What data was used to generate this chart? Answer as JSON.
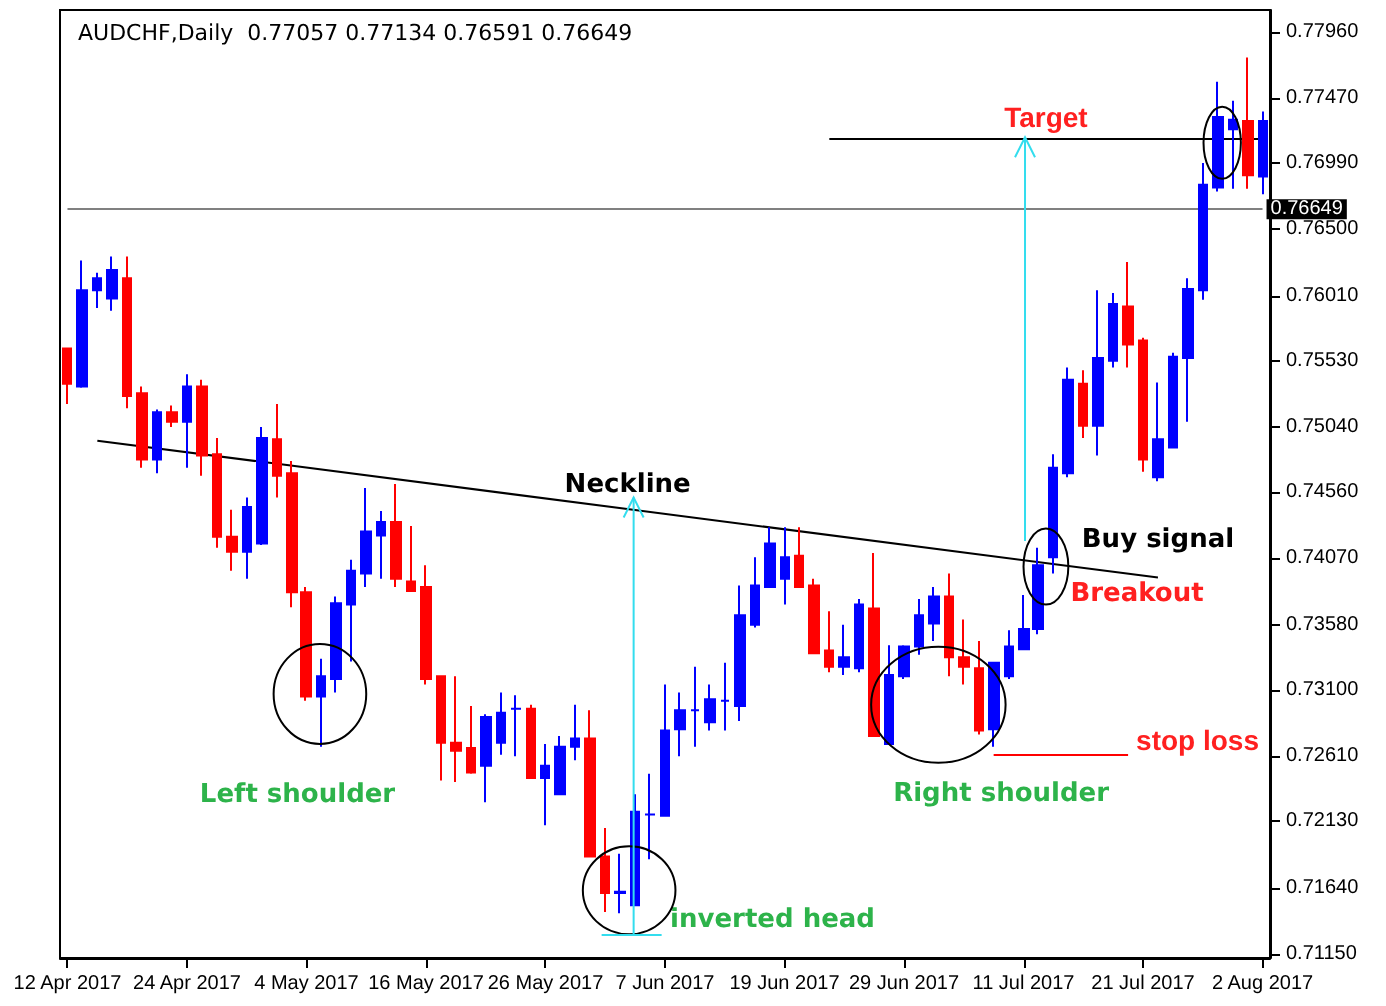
{
  "chart_data": {
    "type": "candlestick",
    "title": "AUDCHF,Daily  0.77057 0.77134 0.76591 0.76649",
    "categories": [
      "12 Apr 2017",
      null,
      null,
      null,
      null,
      null,
      null,
      null,
      "24 Apr 2017",
      null,
      null,
      null,
      null,
      null,
      null,
      null,
      "4 May 2017",
      null,
      null,
      null,
      null,
      null,
      null,
      null,
      "16 May 2017",
      null,
      null,
      null,
      null,
      null,
      null,
      null,
      "26 May 2017",
      null,
      null,
      null,
      null,
      null,
      null,
      null,
      "7 Jun 2017",
      null,
      null,
      null,
      null,
      null,
      null,
      null,
      "19 Jun 2017",
      null,
      null,
      null,
      null,
      null,
      null,
      null,
      "29 Jun 2017",
      null,
      null,
      null,
      null,
      null,
      null,
      null,
      "11 Jul 2017",
      null,
      null,
      null,
      null,
      null,
      null,
      null,
      "21 Jul 2017",
      null,
      null,
      null,
      null,
      null,
      null,
      null,
      "2 Aug 2017"
    ],
    "ohlc": [
      [
        0.7562,
        0.7562,
        0.7521,
        0.7536
      ],
      [
        0.7534,
        0.7627,
        0.7533,
        0.7605
      ],
      [
        0.7605,
        0.7618,
        0.7592,
        0.7614
      ],
      [
        0.7599,
        0.763,
        0.759,
        0.762
      ],
      [
        0.7614,
        0.763,
        0.7518,
        0.7527
      ],
      [
        0.7529,
        0.7534,
        0.7474,
        0.748
      ],
      [
        0.748,
        0.7517,
        0.747,
        0.7515
      ],
      [
        0.7515,
        0.752,
        0.7504,
        0.7508
      ],
      [
        0.7508,
        0.7543,
        0.7474,
        0.7534
      ],
      [
        0.7534,
        0.7539,
        0.7468,
        0.7483
      ],
      [
        0.7484,
        0.7496,
        0.7415,
        0.7423
      ],
      [
        0.7423,
        0.7443,
        0.7398,
        0.7412
      ],
      [
        0.7412,
        0.7452,
        0.7392,
        0.7445
      ],
      [
        0.7418,
        0.7504,
        0.7417,
        0.7496
      ],
      [
        0.7495,
        0.7521,
        0.7452,
        0.7468
      ],
      [
        0.747,
        0.7479,
        0.7371,
        0.7382
      ],
      [
        0.7382,
        0.7386,
        0.7302,
        0.7305
      ],
      [
        0.7305,
        0.7333,
        0.7268,
        0.732
      ],
      [
        0.7318,
        0.7379,
        0.7308,
        0.7374
      ],
      [
        0.7373,
        0.7406,
        0.7331,
        0.7398
      ],
      [
        0.7396,
        0.7459,
        0.7386,
        0.7427
      ],
      [
        0.7424,
        0.7442,
        0.7392,
        0.7434
      ],
      [
        0.7434,
        0.7462,
        0.7386,
        0.7392
      ],
      [
        0.739,
        0.7431,
        0.7383,
        0.7383
      ],
      [
        0.7386,
        0.7402,
        0.7314,
        0.7318
      ],
      [
        0.732,
        0.732,
        0.7243,
        0.7271
      ],
      [
        0.7271,
        0.732,
        0.7242,
        0.7265
      ],
      [
        0.7267,
        0.7298,
        0.7248,
        0.7249
      ],
      [
        0.7254,
        0.7292,
        0.7227,
        0.729
      ],
      [
        0.7271,
        0.7308,
        0.7262,
        0.7293
      ],
      [
        0.7296,
        0.7306,
        0.7261,
        0.7296
      ],
      [
        0.7296,
        0.7299,
        0.7245,
        0.7245
      ],
      [
        0.7245,
        0.727,
        0.721,
        0.7254
      ],
      [
        0.7233,
        0.7276,
        0.7233,
        0.7268
      ],
      [
        0.7268,
        0.7299,
        0.7258,
        0.7274
      ],
      [
        0.7274,
        0.7295,
        0.7187,
        0.7187
      ],
      [
        0.7187,
        0.7208,
        0.7146,
        0.716
      ],
      [
        0.716,
        0.7189,
        0.7145,
        0.7161
      ],
      [
        0.7151,
        0.7233,
        0.7151,
        0.722
      ],
      [
        0.7218,
        0.7248,
        0.7185,
        0.7218
      ],
      [
        0.7217,
        0.7314,
        0.7217,
        0.728
      ],
      [
        0.7281,
        0.7308,
        0.7261,
        0.7295
      ],
      [
        0.7295,
        0.7327,
        0.7268,
        0.7295
      ],
      [
        0.7286,
        0.7314,
        0.728,
        0.7303
      ],
      [
        0.7302,
        0.733,
        0.728,
        0.7302
      ],
      [
        0.7298,
        0.7387,
        0.7287,
        0.7365
      ],
      [
        0.7358,
        0.7408,
        0.7356,
        0.7387
      ],
      [
        0.7386,
        0.743,
        0.7386,
        0.7418
      ],
      [
        0.7392,
        0.743,
        0.7373,
        0.7408
      ],
      [
        0.7409,
        0.743,
        0.7386,
        0.7386
      ],
      [
        0.7387,
        0.7392,
        0.7337,
        0.7337
      ],
      [
        0.7339,
        0.7368,
        0.7323,
        0.7327
      ],
      [
        0.7327,
        0.7358,
        0.7321,
        0.7334
      ],
      [
        0.7326,
        0.7377,
        0.7323,
        0.7373
      ],
      [
        0.737,
        0.7411,
        0.7276,
        0.7276
      ],
      [
        0.727,
        0.7343,
        0.727,
        0.7321
      ],
      [
        0.732,
        0.7343,
        0.7318,
        0.7342
      ],
      [
        0.7342,
        0.7377,
        0.7336,
        0.7365
      ],
      [
        0.7359,
        0.7386,
        0.7346,
        0.7379
      ],
      [
        0.7379,
        0.7396,
        0.732,
        0.7334
      ],
      [
        0.7334,
        0.7362,
        0.7314,
        0.7327
      ],
      [
        0.7326,
        0.7346,
        0.7277,
        0.728
      ],
      [
        0.7281,
        0.733,
        0.7268,
        0.733
      ],
      [
        0.732,
        0.7354,
        0.7318,
        0.7342
      ],
      [
        0.734,
        0.738,
        0.734,
        0.7355
      ],
      [
        0.7355,
        0.7415,
        0.7351,
        0.7402
      ],
      [
        0.7408,
        0.7484,
        0.7396,
        0.7474
      ],
      [
        0.747,
        0.7548,
        0.7467,
        0.7539
      ],
      [
        0.7536,
        0.7546,
        0.7496,
        0.7505
      ],
      [
        0.7505,
        0.7605,
        0.7483,
        0.7555
      ],
      [
        0.7553,
        0.7603,
        0.7548,
        0.7595
      ],
      [
        0.7593,
        0.7626,
        0.7548,
        0.7565
      ],
      [
        0.7568,
        0.757,
        0.7471,
        0.748
      ],
      [
        0.7467,
        0.7537,
        0.7464,
        0.7495
      ],
      [
        0.7489,
        0.7559,
        0.7489,
        0.7556
      ],
      [
        0.7555,
        0.7614,
        0.7508,
        0.7606
      ],
      [
        0.7605,
        0.7699,
        0.7598,
        0.7683
      ],
      [
        0.7681,
        0.7759,
        0.7678,
        0.7733
      ],
      [
        0.7724,
        0.7745,
        0.768,
        0.7731
      ],
      [
        0.773,
        0.7777,
        0.768,
        0.769
      ],
      [
        0.7689,
        0.7737,
        0.7676,
        0.773
      ]
    ],
    "colors": [
      "#ff0000",
      "#0000ff",
      "#0000ff",
      "#0000ff",
      "#ff0000",
      "#ff0000",
      "#0000ff",
      "#ff0000",
      "#0000ff",
      "#ff0000",
      "#ff0000",
      "#ff0000",
      "#0000ff",
      "#0000ff",
      "#ff0000",
      "#ff0000",
      "#ff0000",
      "#0000ff",
      "#0000ff",
      "#0000ff",
      "#0000ff",
      "#0000ff",
      "#ff0000",
      "#ff0000",
      "#ff0000",
      "#ff0000",
      "#ff0000",
      "#ff0000",
      "#0000ff",
      "#0000ff",
      "#0000ff",
      "#ff0000",
      "#0000ff",
      "#0000ff",
      "#0000ff",
      "#ff0000",
      "#ff0000",
      "#0000ff",
      "#0000ff",
      "#0000ff",
      "#0000ff",
      "#0000ff",
      "#0000ff",
      "#0000ff",
      "#0000ff",
      "#0000ff",
      "#0000ff",
      "#0000ff",
      "#0000ff",
      "#ff0000",
      "#ff0000",
      "#ff0000",
      "#0000ff",
      "#0000ff",
      "#ff0000",
      "#0000ff",
      "#0000ff",
      "#0000ff",
      "#0000ff",
      "#ff0000",
      "#ff0000",
      "#ff0000",
      "#0000ff",
      "#0000ff",
      "#0000ff",
      "#0000ff",
      "#0000ff",
      "#0000ff",
      "#ff0000",
      "#0000ff",
      "#0000ff",
      "#ff0000",
      "#ff0000",
      "#0000ff",
      "#0000ff",
      "#0000ff",
      "#0000ff",
      "#0000ff",
      "#0000ff",
      "#ff0000",
      "#0000ff"
    ],
    "series": [
      {
        "type": "line",
        "name": "Neckline",
        "color": "#000000",
        "values": [
          null,
          null,
          0.7494,
          null,
          null,
          null,
          null,
          null,
          null,
          null,
          null,
          null,
          null,
          null,
          null,
          null,
          null,
          null,
          null,
          null,
          null,
          null,
          null,
          null,
          null,
          null,
          null,
          null,
          null,
          null,
          null,
          null,
          null,
          null,
          null,
          null,
          null,
          null,
          null,
          null,
          null,
          null,
          null,
          null,
          null,
          null,
          null,
          null,
          null,
          null,
          null,
          null,
          null,
          null,
          null,
          null,
          null,
          null,
          null,
          null,
          null,
          null,
          null,
          null,
          null,
          null,
          null,
          null,
          null,
          null,
          null,
          null,
          null,
          0.7393,
          null,
          null,
          null,
          null,
          null,
          null,
          null
        ]
      }
    ],
    "ylim": [
      0.7112,
      0.7812
    ],
    "yticks": [
      {
        "value": 0.7796,
        "label": "0.77960"
      },
      {
        "value": 0.7747,
        "label": "0.77470"
      },
      {
        "value": 0.7699,
        "label": "0.76990"
      },
      {
        "value": 0.765,
        "label": "0.76500"
      },
      {
        "value": 0.7601,
        "label": "0.76010"
      },
      {
        "value": 0.7553,
        "label": "0.75530"
      },
      {
        "value": 0.7504,
        "label": "0.75040"
      },
      {
        "value": 0.7456,
        "label": "0.74560"
      },
      {
        "value": 0.7407,
        "label": "0.74070"
      },
      {
        "value": 0.7358,
        "label": "0.73580"
      },
      {
        "value": 0.731,
        "label": "0.73100"
      },
      {
        "value": 0.7261,
        "label": "0.72610"
      },
      {
        "value": 0.7213,
        "label": "0.72130"
      },
      {
        "value": 0.7164,
        "label": "0.71640"
      },
      {
        "value": 0.7115,
        "label": "0.71150"
      }
    ],
    "ref_lines": [
      {
        "axis": "y",
        "value": 0.7717,
        "label": "Target",
        "color": "#000000"
      },
      {
        "axis": "y",
        "value": 0.7263,
        "label": "stop loss",
        "color": "#ff0000"
      },
      {
        "axis": "y",
        "value": 0.76649,
        "label": "0.76649",
        "color": "#808080"
      }
    ],
    "annotations": [
      "Left shoulder",
      "inverted head",
      "Right shoulder",
      "Buy signal",
      "Breakout"
    ]
  }
}
